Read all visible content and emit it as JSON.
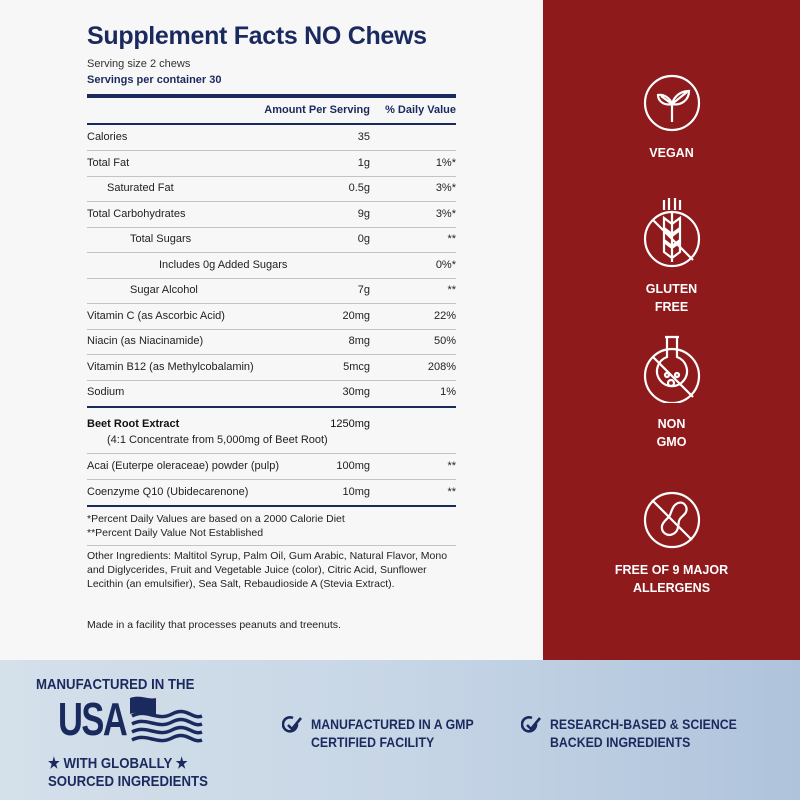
{
  "title": "Supplement Facts NO Chews",
  "serving_size": "Serving size 2 chews",
  "servings_per_container": "Servings per container 30",
  "headers": {
    "amount": "Amount Per Serving",
    "dv": "% Daily Value"
  },
  "rows": [
    {
      "name": "Calories",
      "amount": "35",
      "dv": ""
    },
    {
      "name": "Total Fat",
      "amount": "1g",
      "dv": "1%*"
    },
    {
      "name": "Saturated Fat",
      "amount": "0.5g",
      "dv": "3%*"
    },
    {
      "name": "Total Carbohydrates",
      "amount": "9g",
      "dv": "3%*"
    },
    {
      "name": "Total Sugars",
      "amount": "0g",
      "dv": "**"
    },
    {
      "name": "Includes 0g Added Sugars",
      "amount": "",
      "dv": "0%*"
    },
    {
      "name": "Sugar Alcohol",
      "amount": "7g",
      "dv": "**"
    },
    {
      "name": "Vitamin C (as Ascorbic Acid)",
      "amount": "20mg",
      "dv": "22%"
    },
    {
      "name": "Niacin (as Niacinamide)",
      "amount": "8mg",
      "dv": "50%"
    },
    {
      "name": "Vitamin B12 (as Methylcobalamin)",
      "amount": "5mcg",
      "dv": "208%"
    },
    {
      "name": "Sodium",
      "amount": "30mg",
      "dv": "1%"
    }
  ],
  "blend": {
    "name": "Beet Root Extract",
    "amount": "1250mg",
    "note": "(4:1 Concentrate from 5,000mg of Beet Root)"
  },
  "other_rows": [
    {
      "name": "Acai (Euterpe oleraceae) powder (pulp)",
      "amount": "100mg",
      "dv": "**"
    },
    {
      "name": "Coenzyme Q10 (Ubidecarenone)",
      "amount": "10mg",
      "dv": "**"
    }
  ],
  "footnotes": [
    "*Percent Daily Values are based on a 2000 Calorie Diet",
    "**Percent Daily Value Not Established"
  ],
  "other_ingredients": "Other Ingredients: Maltitol Syrup, Palm Oil, Gum Arabic, Natural Flavor, Mono and Diglycerides, Fruit and Vegetable Juice (color), Citric Acid, Sunflower Lecithin (an emulsifier), Sea Salt, Rebaudioside A (Stevia Extract).",
  "facility_note": "Made in a facility that processes peanuts and treenuts.",
  "badges": [
    {
      "icon": "leaf-icon",
      "label1": "VEGAN",
      "label2": ""
    },
    {
      "icon": "no-wheat-icon",
      "label1": "GLUTEN",
      "label2": "FREE"
    },
    {
      "icon": "no-gmo-flask-icon",
      "label1": "NON",
      "label2": "GMO"
    },
    {
      "icon": "no-peanut-icon",
      "label1": "FREE OF 9 MAJOR",
      "label2": "ALLERGENS"
    }
  ],
  "usa": {
    "top": "MANUFACTURED IN THE",
    "big": "USA",
    "line1": "★ WITH GLOBALLY ★",
    "line2": "SOURCED INGREDIENTS"
  },
  "claims": [
    {
      "line1": "MANUFACTURED IN A GMP",
      "line2": "CERTIFIED FACILITY"
    },
    {
      "line1": "RESEARCH-BASED & SCIENCE",
      "line2": "BACKED INGREDIENTS"
    }
  ],
  "colors": {
    "navy": "#1b2a5e",
    "red": "#8e1a1c"
  }
}
